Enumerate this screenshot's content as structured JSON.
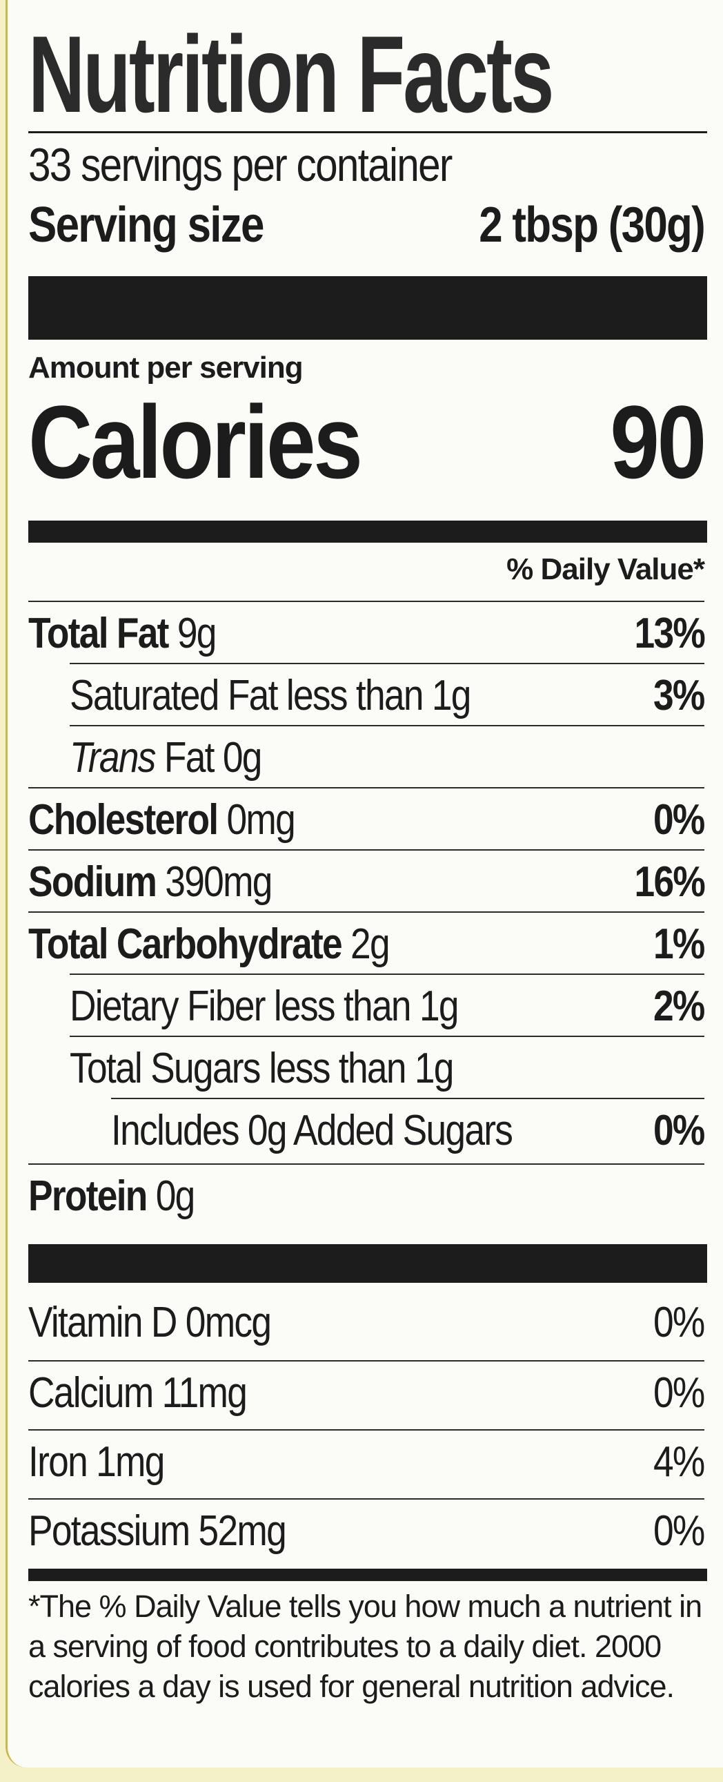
{
  "title": "Nutrition Facts",
  "servings_per_container": "33 servings per container",
  "serving_size_label": "Serving size",
  "serving_size_value": "2 tbsp (30g)",
  "amount_per_serving": "Amount per serving",
  "calories_label": "Calories",
  "calories_value": "90",
  "daily_value_header": "% Daily Value*",
  "nutrients": [
    {
      "name": "Total Fat",
      "amount": "9g",
      "dv": "13%"
    },
    {
      "name": "Saturated Fat",
      "amount": "less than 1g",
      "dv": "3%"
    },
    {
      "name": "Trans",
      "amount": "Fat 0g",
      "dv": ""
    },
    {
      "name": "Cholesterol",
      "amount": "0mg",
      "dv": "0%"
    },
    {
      "name": "Sodium",
      "amount": "390mg",
      "dv": "16%"
    },
    {
      "name": "Total Carbohydrate",
      "amount": "2g",
      "dv": "1%"
    },
    {
      "name": "Dietary Fiber",
      "amount": "less than 1g",
      "dv": "2%"
    },
    {
      "name": "Total Sugars",
      "amount": "less than 1g",
      "dv": ""
    },
    {
      "name": "Includes 0g Added Sugars",
      "amount": "",
      "dv": "0%"
    },
    {
      "name": "Protein",
      "amount": "0g",
      "dv": ""
    }
  ],
  "vitamins": [
    {
      "name": "Vitamin D 0mcg",
      "dv": "0%"
    },
    {
      "name": "Calcium 11mg",
      "dv": "0%"
    },
    {
      "name": "Iron 1mg",
      "dv": "4%"
    },
    {
      "name": "Potassium 52mg",
      "dv": "0%"
    }
  ],
  "footnote": "*The % Daily Value tells you how much a nutrient in a serving of food contributes to a daily diet. 2000 calories a day is used for general nutrition advice."
}
